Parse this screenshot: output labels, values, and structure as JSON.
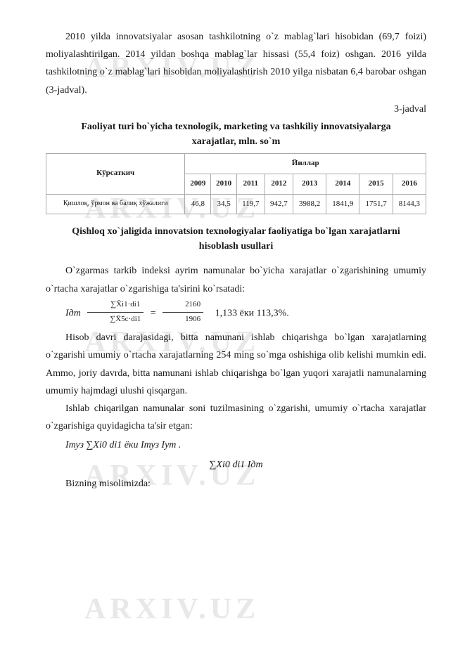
{
  "watermark_text": "ARXIV.UZ",
  "para1": "2010 yilda innovatsiyalar asosan tashkilotning o`z mablag`lari hisobidan (69,7 foizi) moliyalashtirilgan. 2014 yildan boshqa mablag`lar hissasi (55,4 foiz) oshgan. 2016 yilda tashkilotning o`z mablag`lari hisobidan moliyalashtirish 2010 yilga nisbatan 6,4 barobar oshgan (3-jadval).",
  "table_ref": "3-jadval",
  "table_title_line1": "Faoliyat turi bo`yicha texnologik, marketing va tashkiliy innovatsiyalarga",
  "table_title_line2": "xarajatlar, mln. so`m",
  "table": {
    "header_indicator": "Кўрсаткич",
    "header_years": "Йиллар",
    "years": [
      "2009",
      "2010",
      "2011",
      "2012",
      "2013",
      "2014",
      "2015",
      "2016"
    ],
    "row_label": "Қишлоқ, ўрмон ва балиқ хўжалиги",
    "values": [
      "46,8",
      "34,5",
      "119,7",
      "942,7",
      "3988,2",
      "1841,9",
      "1751,7",
      "8144,3"
    ]
  },
  "section_title_line1": "Qishloq xo`jaligida innovatsion texnologiyalar faoliyatiga bo`lgan xarajatlarni",
  "section_title_line2": "hisoblash usullari",
  "para2": "O`zgarmas tarkib indeksi ayrim namunalar bo`yicha xarajatlar o`zgarishining umumiy o`rtacha xarajatlar o`zgarishiga ta'sirini ko`rsatadi:",
  "formula1_lhs": "Iдт",
  "formula1_num": "∑X̄i1·di1",
  "formula1_den": "∑X̄5c·di1",
  "formula1_eq": "=",
  "formula1_frac2_num": "2160",
  "formula1_frac2_den": "1906",
  "formula1_tail": "1,133 ёки 113,3%.",
  "para3": "Hisob davri darajasidagi, bitta namunani ishlab chiqarishga bo`lgan xarajatlarning o`zgarishi umumiy o`rtacha xarajatlarning 254 ming so`mga oshishiga olib kelishi mumkin edi. Ammo, joriy davrda, bitta namunani ishlab chiqarishga bo`lgan yuqori xarajatli namunalarning umumiy hajmdagi ulushi qisqargan.",
  "para4": "Ishlab chiqarilgan namunalar soni tuzilmasining o`zgarishi, umumiy o`rtacha xarajatlar o`zgarishiga quyidagicha ta'sir etgan:",
  "formula2": "Iтуз    ∑Xi0    di1 ёки Iтуз       Iyт .",
  "formula3": "∑Xi0   di1               Iдт",
  "para5": "Bizning misolimizda:"
}
